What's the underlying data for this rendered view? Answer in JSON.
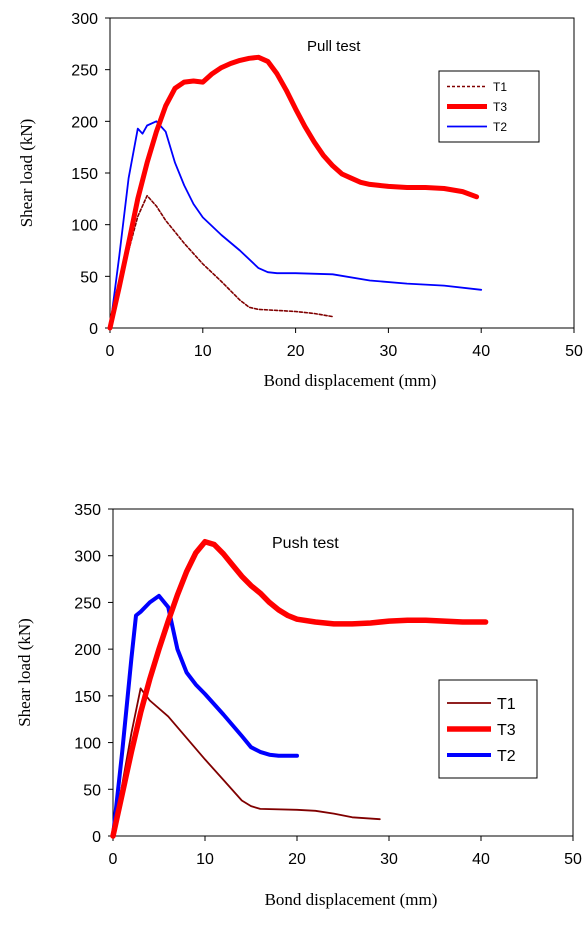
{
  "chart_data": [
    {
      "type": "line",
      "annotation": "Pull test",
      "xlabel": "Bond displacement (mm)",
      "ylabel": "Shear load (kN)",
      "xlim": [
        0,
        50
      ],
      "ylim": [
        0,
        300
      ],
      "xticks": [
        "0",
        "10",
        "20",
        "30",
        "40",
        "50"
      ],
      "yticks": [
        "0",
        "50",
        "100",
        "150",
        "200",
        "250",
        "300"
      ],
      "grid": false,
      "legend_position": "top-right",
      "legend_order": [
        "T1",
        "T3",
        "T2"
      ],
      "series": [
        {
          "name": "T1",
          "color": "#800000",
          "style": "dotted",
          "x": [
            0,
            1,
            2,
            3,
            4,
            5,
            6,
            7,
            8,
            10,
            12,
            14,
            15,
            16,
            18,
            20,
            22,
            24
          ],
          "y": [
            0,
            40,
            75,
            108,
            128,
            118,
            104,
            93,
            82,
            62,
            45,
            27,
            20,
            18,
            17,
            16,
            14,
            11
          ]
        },
        {
          "name": "T3",
          "color": "#ff0000",
          "style": "thick",
          "x": [
            0,
            1,
            2,
            3,
            4,
            5,
            6,
            7,
            8,
            9,
            10,
            11,
            12,
            13,
            14,
            15,
            16,
            17,
            18,
            19,
            20,
            21,
            22,
            23,
            24,
            25,
            26,
            27,
            28,
            29,
            30,
            32,
            34,
            36,
            38,
            39.5
          ],
          "y": [
            0,
            40,
            82,
            125,
            160,
            190,
            215,
            232,
            238,
            239,
            238,
            246,
            252,
            256,
            259,
            261,
            262,
            258,
            246,
            230,
            212,
            195,
            180,
            167,
            157,
            149,
            145,
            141,
            139,
            138,
            137,
            136,
            136,
            135,
            132,
            127
          ]
        },
        {
          "name": "T2",
          "color": "#0000ff",
          "style": "thin",
          "x": [
            0,
            1,
            2,
            3,
            3.5,
            4,
            5,
            6,
            7,
            8,
            9,
            10,
            12,
            14,
            16,
            17,
            18,
            20,
            24,
            28,
            32,
            36,
            40
          ],
          "y": [
            0,
            70,
            145,
            193,
            188,
            196,
            200,
            190,
            160,
            138,
            120,
            107,
            90,
            75,
            58,
            54,
            53,
            53,
            52,
            46,
            43,
            41,
            37
          ]
        }
      ]
    },
    {
      "type": "line",
      "annotation": "Push test",
      "xlabel": "Bond displacement (mm)",
      "ylabel": "Shear load (kN)",
      "xlim": [
        0,
        50
      ],
      "ylim": [
        0,
        350
      ],
      "xticks": [
        "0",
        "10",
        "20",
        "30",
        "40",
        "50"
      ],
      "yticks": [
        "0",
        "50",
        "100",
        "150",
        "200",
        "250",
        "300",
        "350"
      ],
      "grid": false,
      "legend_position": "right",
      "legend_order": [
        "T1",
        "T3",
        "T2"
      ],
      "series": [
        {
          "name": "T1",
          "color": "#800000",
          "style": "thin",
          "x": [
            0,
            1,
            2,
            3,
            4,
            6,
            8,
            10,
            12,
            14,
            15,
            16,
            20,
            22,
            24,
            26,
            29
          ],
          "y": [
            0,
            55,
            110,
            158,
            145,
            128,
            105,
            82,
            60,
            38,
            32,
            29,
            28,
            27,
            24,
            20,
            18
          ]
        },
        {
          "name": "T3",
          "color": "#ff0000",
          "style": "thick",
          "x": [
            0,
            1,
            2,
            3,
            4,
            5,
            6,
            7,
            8,
            9,
            10,
            11,
            12,
            13,
            14,
            15,
            16,
            17,
            18,
            19,
            20,
            22,
            24,
            26,
            28,
            30,
            32,
            34,
            36,
            38,
            40.5
          ],
          "y": [
            0,
            45,
            90,
            132,
            168,
            200,
            230,
            258,
            283,
            303,
            315,
            312,
            302,
            290,
            278,
            268,
            260,
            250,
            242,
            236,
            232,
            229,
            227,
            227,
            228,
            230,
            231,
            231,
            230,
            229,
            229
          ]
        },
        {
          "name": "T2",
          "color": "#0000ff",
          "style": "medium",
          "x": [
            0,
            1,
            2,
            2.5,
            3,
            4,
            5,
            6,
            7,
            8,
            9,
            10,
            12,
            14,
            15,
            16,
            17,
            18,
            20
          ],
          "y": [
            0,
            90,
            190,
            236,
            240,
            250,
            257,
            245,
            200,
            175,
            162,
            152,
            130,
            107,
            95,
            90,
            87,
            86,
            86
          ]
        }
      ]
    }
  ]
}
